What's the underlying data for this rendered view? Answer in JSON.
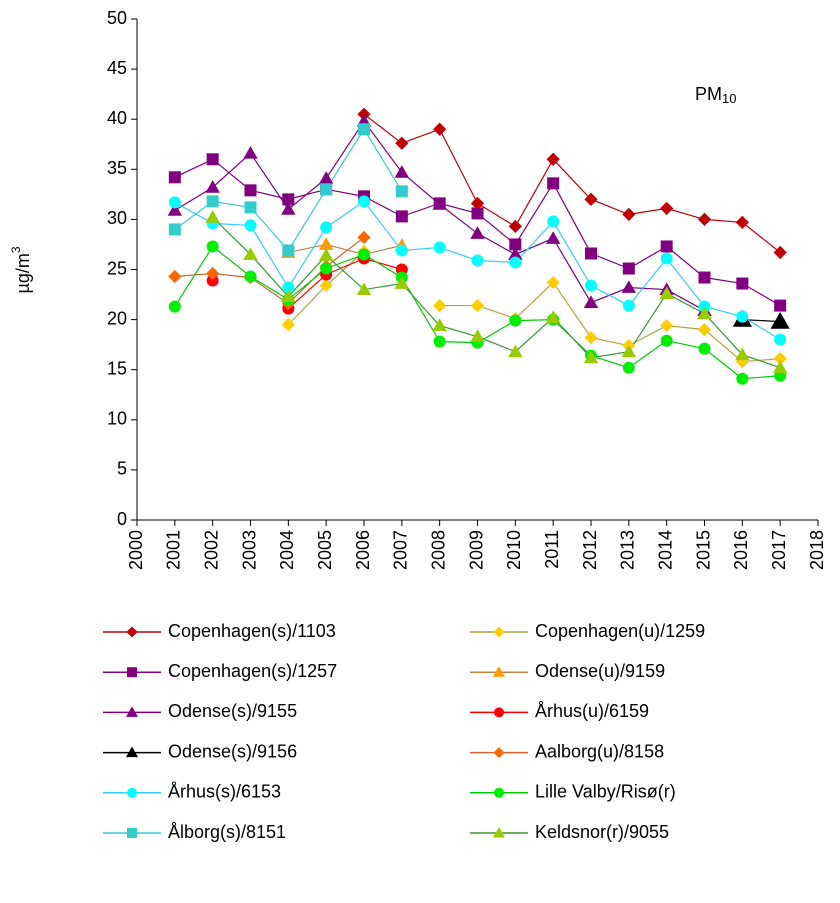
{
  "chart_data": {
    "type": "line",
    "title": "PM",
    "title_sub": "10",
    "ylabel": "µg/m",
    "ylabel_sup": "3",
    "x": [
      2001,
      2002,
      2003,
      2004,
      2005,
      2006,
      2007,
      2008,
      2009,
      2010,
      2011,
      2012,
      2013,
      2014,
      2015,
      2016,
      2017
    ],
    "xlim": [
      2000,
      2018
    ],
    "xticks": [
      2000,
      2001,
      2002,
      2003,
      2004,
      2005,
      2006,
      2007,
      2008,
      2009,
      2010,
      2011,
      2012,
      2013,
      2014,
      2015,
      2016,
      2017,
      2018
    ],
    "ylim": [
      0,
      50
    ],
    "yticks": [
      0,
      5,
      10,
      15,
      20,
      25,
      30,
      35,
      40,
      45,
      50
    ],
    "grid": false,
    "legend": "bottom",
    "series": [
      {
        "name": "Copenhagen(s)/1103",
        "color": "#c00000",
        "line_color": "#c00000",
        "marker": "diamond",
        "values": [
          null,
          null,
          null,
          null,
          null,
          40.5,
          37.6,
          39,
          31.6,
          29.3,
          36,
          32,
          30.5,
          31.1,
          30,
          29.7,
          26.7
        ]
      },
      {
        "name": "Copenhagen(u)/1259",
        "color": "#ffcc00",
        "line_color": "#b8a040",
        "marker": "diamond",
        "values": [
          null,
          null,
          null,
          19.5,
          23.4,
          26.8,
          null,
          21.4,
          21.4,
          20.1,
          23.7,
          18.2,
          17.4,
          19.4,
          19,
          15.8,
          16.1
        ]
      },
      {
        "name": "Copenhagen(s)/1257",
        "color": "#800080",
        "line_color": "#800080",
        "marker": "square",
        "values": [
          34.2,
          36,
          32.9,
          32,
          33,
          32.3,
          30.3,
          31.6,
          30.6,
          27.5,
          33.6,
          26.6,
          25.1,
          27.3,
          24.2,
          23.6,
          21.4
        ]
      },
      {
        "name": "Odense(u)/9159",
        "color": "#ff9900",
        "line_color": "#c08040",
        "marker": "triangle",
        "values": [
          null,
          null,
          null,
          26.7,
          27.5,
          26.5,
          27.4,
          null,
          null,
          null,
          null,
          null,
          null,
          null,
          null,
          null,
          null
        ]
      },
      {
        "name": "Odense(s)/9155",
        "color": "#800080",
        "line_color": "#800080",
        "marker": "triangle",
        "values": [
          30.9,
          33.2,
          36.6,
          31,
          34.1,
          39.8,
          34.7,
          31.5,
          28.6,
          26.5,
          28.1,
          21.7,
          23.2,
          23,
          20.9,
          null,
          null
        ]
      },
      {
        "name": "Århus(u)/6159",
        "color": "#ff0000",
        "line_color": "#ff0000",
        "marker": "circle",
        "values": [
          null,
          23.9,
          null,
          21.1,
          24.5,
          26.1,
          25,
          null,
          null,
          null,
          null,
          null,
          null,
          null,
          null,
          null,
          null
        ]
      },
      {
        "name": "Odense(s)/9156",
        "color": "#000000",
        "line_color": "#000000",
        "marker": "triangle",
        "values": [
          null,
          null,
          null,
          null,
          null,
          null,
          null,
          null,
          null,
          null,
          null,
          null,
          null,
          null,
          null,
          20,
          19.8
        ]
      },
      {
        "name": "Aalborg(u)/8158",
        "color": "#ff6600",
        "line_color": "#cc6633",
        "marker": "diamond",
        "values": [
          24.3,
          24.6,
          24.2,
          21.6,
          25.3,
          28.2,
          null,
          null,
          null,
          null,
          null,
          null,
          null,
          null,
          null,
          null,
          null
        ]
      },
      {
        "name": "Århus(s)/6153",
        "color": "#00ffff",
        "line_color": "#33ccff",
        "marker": "circle",
        "values": [
          31.7,
          29.6,
          29.4,
          23.2,
          29.2,
          31.8,
          26.9,
          27.2,
          25.9,
          25.7,
          29.8,
          23.4,
          21.4,
          26.1,
          21.3,
          20.3,
          18
        ]
      },
      {
        "name": "Lille Valby/Risø(r)",
        "color": "#00ee00",
        "line_color": "#00cc00",
        "marker": "circle",
        "values": [
          21.3,
          27.3,
          24.3,
          22,
          25.1,
          26.5,
          24.2,
          17.8,
          17.7,
          19.9,
          20,
          16.4,
          15.2,
          17.9,
          17.1,
          14.1,
          14.4
        ]
      },
      {
        "name": "Ålborg(s)/8151",
        "color": "#33cccc",
        "line_color": "#33cccc",
        "marker": "square",
        "values": [
          29,
          31.8,
          31.2,
          26.9,
          33,
          39,
          32.8,
          null,
          null,
          null,
          null,
          null,
          null,
          null,
          null,
          null,
          null
        ]
      },
      {
        "name": "Keldsnor(r)/9055",
        "color": "#99cc00",
        "line_color": "#339933",
        "marker": "triangle",
        "values": [
          null,
          30.2,
          26.5,
          22.3,
          26.4,
          23,
          23.6,
          19.4,
          18.3,
          16.8,
          20.2,
          16.2,
          16.8,
          22.6,
          20.6,
          16.5,
          15.2
        ]
      }
    ]
  }
}
